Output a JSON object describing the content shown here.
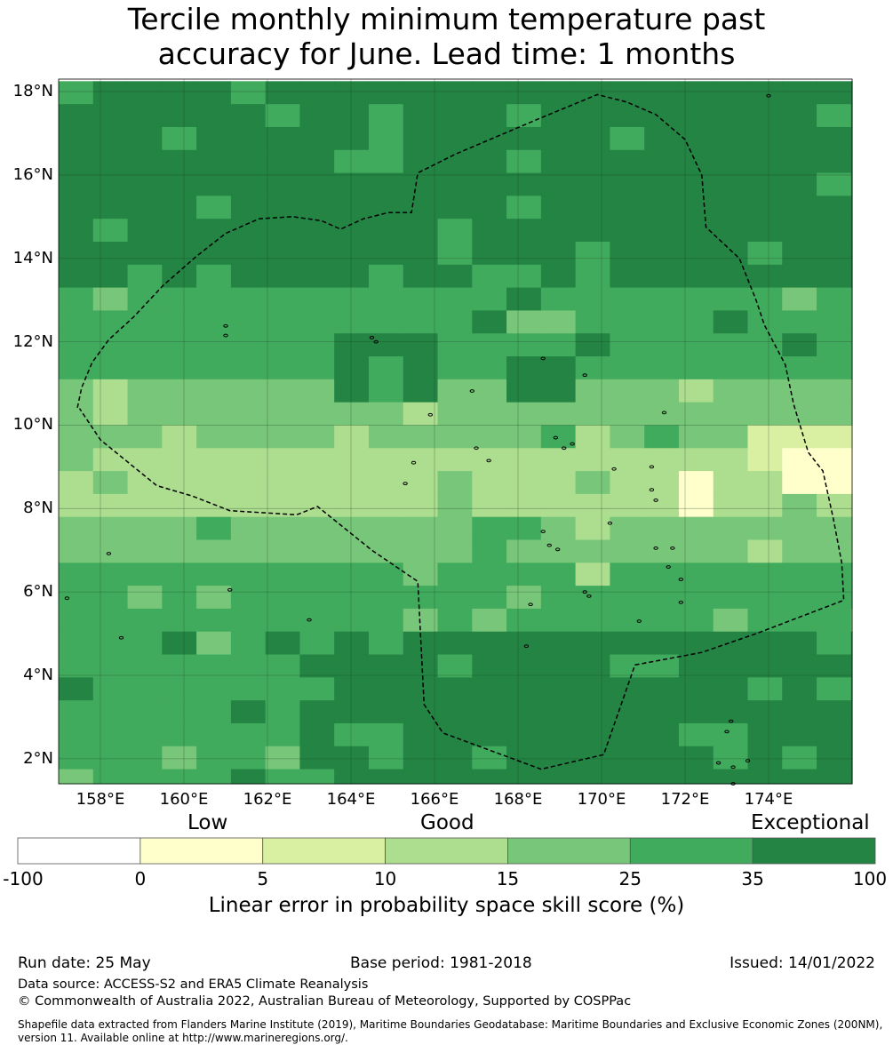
{
  "title_line1": "Tercile monthly minimum temperature past",
  "title_line2": "accuracy for June. Lead time: 1 months",
  "map": {
    "lon_range": [
      157.0,
      176.0
    ],
    "lat_range": [
      1.4,
      18.3
    ],
    "lat_ticks": [
      {
        "value": 18,
        "label": "18°N"
      },
      {
        "value": 16,
        "label": "16°N"
      },
      {
        "value": 14,
        "label": "14°N"
      },
      {
        "value": 12,
        "label": "12°N"
      },
      {
        "value": 10,
        "label": "10°N"
      },
      {
        "value": 8,
        "label": "8°N"
      },
      {
        "value": 6,
        "label": "6°N"
      },
      {
        "value": 4,
        "label": "4°N"
      },
      {
        "value": 2,
        "label": "2°N"
      }
    ],
    "lon_ticks": [
      {
        "value": 158,
        "label": "158°E"
      },
      {
        "value": 160,
        "label": "160°E"
      },
      {
        "value": 162,
        "label": "162°E"
      },
      {
        "value": 164,
        "label": "164°E"
      },
      {
        "value": 166,
        "label": "166°E"
      },
      {
        "value": 168,
        "label": "168°E"
      },
      {
        "value": 170,
        "label": "170°E"
      },
      {
        "value": 172,
        "label": "172°E"
      },
      {
        "value": 174,
        "label": "174°E"
      }
    ],
    "eez_boundary": [
      [
        157.45,
        10.42
      ],
      [
        157.55,
        10.9
      ],
      [
        157.8,
        11.5
      ],
      [
        158.2,
        12.05
      ],
      [
        158.8,
        12.6
      ],
      [
        159.5,
        13.35
      ],
      [
        160.3,
        14.05
      ],
      [
        161.0,
        14.6
      ],
      [
        161.8,
        14.95
      ],
      [
        162.6,
        15.0
      ],
      [
        163.3,
        14.9
      ],
      [
        163.75,
        14.7
      ],
      [
        164.3,
        14.95
      ],
      [
        164.9,
        15.1
      ],
      [
        165.45,
        15.1
      ],
      [
        165.6,
        16.05
      ],
      [
        166.5,
        16.5
      ],
      [
        168.5,
        17.35
      ],
      [
        169.9,
        17.93
      ],
      [
        170.6,
        17.75
      ],
      [
        171.3,
        17.45
      ],
      [
        172.0,
        16.85
      ],
      [
        172.4,
        16.0
      ],
      [
        172.5,
        14.75
      ],
      [
        173.3,
        14.0
      ],
      [
        173.7,
        13.0
      ],
      [
        173.9,
        12.4
      ],
      [
        174.4,
        11.45
      ],
      [
        174.6,
        10.5
      ],
      [
        174.95,
        9.35
      ],
      [
        175.3,
        8.9
      ],
      [
        175.55,
        7.75
      ],
      [
        175.75,
        6.7
      ],
      [
        175.8,
        5.8
      ],
      [
        173.7,
        5.0
      ],
      [
        172.4,
        4.55
      ],
      [
        170.8,
        4.25
      ],
      [
        170.05,
        2.1
      ],
      [
        168.55,
        1.75
      ],
      [
        166.2,
        2.62
      ],
      [
        165.75,
        3.3
      ],
      [
        165.6,
        6.25
      ],
      [
        164.5,
        7.0
      ],
      [
        163.2,
        8.05
      ],
      [
        162.7,
        7.85
      ],
      [
        161.1,
        7.95
      ],
      [
        160.2,
        8.3
      ],
      [
        159.35,
        8.55
      ],
      [
        158.0,
        9.65
      ],
      [
        157.5,
        10.4
      ]
    ],
    "islands": [
      [
        158.2,
        6.92
      ],
      [
        161.1,
        6.05
      ],
      [
        163.0,
        5.33
      ],
      [
        161.0,
        12.38
      ],
      [
        161.0,
        12.15
      ],
      [
        164.5,
        12.1
      ],
      [
        164.6,
        12.0
      ],
      [
        165.9,
        10.25
      ],
      [
        166.9,
        10.82
      ],
      [
        167.0,
        9.45
      ],
      [
        165.5,
        9.1
      ],
      [
        165.3,
        8.6
      ],
      [
        167.3,
        9.15
      ],
      [
        168.9,
        9.7
      ],
      [
        169.1,
        9.45
      ],
      [
        169.3,
        9.55
      ],
      [
        168.6,
        7.45
      ],
      [
        168.75,
        7.12
      ],
      [
        168.95,
        7.02
      ],
      [
        169.6,
        6.0
      ],
      [
        169.7,
        5.9
      ],
      [
        168.3,
        5.7
      ],
      [
        168.2,
        4.7
      ],
      [
        170.2,
        7.65
      ],
      [
        171.3,
        7.05
      ],
      [
        171.7,
        7.05
      ],
      [
        171.6,
        6.6
      ],
      [
        171.9,
        6.3
      ],
      [
        170.9,
        5.3
      ],
      [
        171.9,
        5.75
      ],
      [
        170.3,
        8.95
      ],
      [
        171.2,
        9.0
      ],
      [
        171.2,
        8.45
      ],
      [
        171.3,
        8.2
      ],
      [
        171.5,
        10.3
      ],
      [
        169.6,
        11.2
      ],
      [
        168.6,
        11.6
      ],
      [
        174.0,
        17.9
      ],
      [
        173.0,
        2.65
      ],
      [
        173.1,
        2.9
      ],
      [
        172.8,
        1.9
      ],
      [
        173.15,
        1.8
      ],
      [
        173.5,
        1.95
      ],
      [
        173.15,
        1.4
      ],
      [
        157.2,
        5.85
      ],
      [
        158.5,
        4.9
      ]
    ]
  },
  "colorbar": {
    "words": {
      "low": "Low",
      "good": "Good",
      "exceptional": "Exceptional"
    },
    "colors": [
      "#ffffff",
      "#ffffcc",
      "#d9f0a3",
      "#addd8e",
      "#78c679",
      "#41ab5d",
      "#238443"
    ],
    "ticks": [
      "-100",
      "0",
      "5",
      "10",
      "15",
      "25",
      "35",
      "100"
    ],
    "label": "Linear error in probability space skill score (%)"
  },
  "footer": {
    "run_date": "Run date: 25 May",
    "base_period": "Base period: 1981-2018",
    "issued": "Issued: 14/01/2022",
    "data_source": "Data source: ACCESS-S2 and ERA5 Climate Reanalysis",
    "copyright": "© Commonwealth of Australia 2022, Australian Bureau of Meteorology, Supported by COSPPac",
    "shapefile": "Shapefile data extracted from Flanders Marine Institute (2019), Maritime Boundaries Geodatabase: Maritime Boundaries and Exclusive Economic Zones (200NM), version 11. Available online at http://www.marineregions.org/."
  }
}
